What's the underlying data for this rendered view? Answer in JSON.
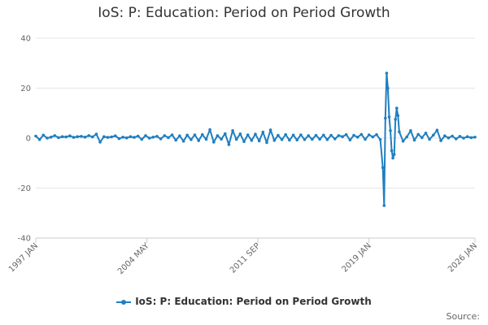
{
  "chart_data": {
    "type": "line",
    "title": "IoS: P: Education: Period on Period Growth",
    "xlabel": "",
    "ylabel": "",
    "ylim": [
      -40,
      40
    ],
    "yticks": [
      "40",
      "20",
      "0",
      "-20",
      "-40"
    ],
    "ytick_values": [
      40,
      20,
      0,
      -20,
      -40
    ],
    "xlim": [
      "1997-01",
      "2026-01"
    ],
    "xticks": [
      "1997 JAN",
      "2004 MAY",
      "2011 SEP",
      "2019 JAN",
      "2026 JAN"
    ],
    "xtick_values": [
      "1997-01",
      "2004-05",
      "2011-09",
      "2019-01",
      "2026-01"
    ],
    "grid": true,
    "legend_position": "bottom",
    "series": [
      {
        "name": "IoS: P: Education: Period on Period Growth",
        "color": "#1f7fc0",
        "points": [
          [
            "1997-01",
            0.8
          ],
          [
            "1997-04",
            -0.6
          ],
          [
            "1997-07",
            1.2
          ],
          [
            "1997-10",
            0.0
          ],
          [
            "1998-01",
            0.4
          ],
          [
            "1998-04",
            1.0
          ],
          [
            "1998-07",
            0.2
          ],
          [
            "1998-10",
            0.6
          ],
          [
            "1999-01",
            0.5
          ],
          [
            "1999-04",
            0.9
          ],
          [
            "1999-07",
            0.3
          ],
          [
            "1999-10",
            0.6
          ],
          [
            "2000-01",
            0.7
          ],
          [
            "2000-04",
            0.4
          ],
          [
            "2000-07",
            1.0
          ],
          [
            "2000-10",
            0.5
          ],
          [
            "2001-01",
            1.6
          ],
          [
            "2001-04",
            -1.6
          ],
          [
            "2001-07",
            0.6
          ],
          [
            "2001-10",
            0.3
          ],
          [
            "2002-01",
            0.5
          ],
          [
            "2002-04",
            0.9
          ],
          [
            "2002-07",
            -0.2
          ],
          [
            "2002-10",
            0.4
          ],
          [
            "2003-01",
            0.1
          ],
          [
            "2003-04",
            0.6
          ],
          [
            "2003-07",
            0.3
          ],
          [
            "2003-10",
            0.8
          ],
          [
            "2004-01",
            -0.5
          ],
          [
            "2004-04",
            1.0
          ],
          [
            "2004-07",
            0.0
          ],
          [
            "2004-10",
            0.4
          ],
          [
            "2005-01",
            0.7
          ],
          [
            "2005-04",
            -0.3
          ],
          [
            "2005-07",
            1.0
          ],
          [
            "2005-10",
            0.2
          ],
          [
            "2006-01",
            1.3
          ],
          [
            "2006-04",
            -0.8
          ],
          [
            "2006-07",
            0.9
          ],
          [
            "2006-10",
            -1.2
          ],
          [
            "2007-01",
            1.2
          ],
          [
            "2007-04",
            -0.6
          ],
          [
            "2007-07",
            1.3
          ],
          [
            "2007-10",
            -1.0
          ],
          [
            "2008-01",
            1.4
          ],
          [
            "2008-04",
            -0.5
          ],
          [
            "2008-07",
            3.4
          ],
          [
            "2008-10",
            -1.6
          ],
          [
            "2009-01",
            1.0
          ],
          [
            "2009-04",
            -0.4
          ],
          [
            "2009-07",
            1.8
          ],
          [
            "2009-10",
            -2.6
          ],
          [
            "2010-01",
            3.0
          ],
          [
            "2010-04",
            -0.5
          ],
          [
            "2010-07",
            1.7
          ],
          [
            "2010-10",
            -1.4
          ],
          [
            "2011-01",
            1.3
          ],
          [
            "2011-04",
            -0.9
          ],
          [
            "2011-07",
            1.6
          ],
          [
            "2011-10",
            -1.1
          ],
          [
            "2012-01",
            2.4
          ],
          [
            "2012-04",
            -1.8
          ],
          [
            "2012-07",
            3.3
          ],
          [
            "2012-10",
            -0.9
          ],
          [
            "2013-01",
            1.1
          ],
          [
            "2013-04",
            -0.6
          ],
          [
            "2013-07",
            1.4
          ],
          [
            "2013-10",
            -0.8
          ],
          [
            "2014-01",
            1.2
          ],
          [
            "2014-04",
            -0.7
          ],
          [
            "2014-07",
            1.3
          ],
          [
            "2014-10",
            -0.6
          ],
          [
            "2015-01",
            1.0
          ],
          [
            "2015-04",
            -0.5
          ],
          [
            "2015-07",
            1.1
          ],
          [
            "2015-10",
            -0.4
          ],
          [
            "2016-01",
            1.2
          ],
          [
            "2016-04",
            -0.6
          ],
          [
            "2016-07",
            1.1
          ],
          [
            "2016-10",
            -0.3
          ],
          [
            "2017-01",
            1.0
          ],
          [
            "2017-04",
            0.6
          ],
          [
            "2017-07",
            1.4
          ],
          [
            "2017-10",
            -0.7
          ],
          [
            "2018-01",
            1.1
          ],
          [
            "2018-04",
            0.4
          ],
          [
            "2018-07",
            1.5
          ],
          [
            "2018-10",
            -0.5
          ],
          [
            "2019-01",
            1.3
          ],
          [
            "2019-04",
            0.5
          ],
          [
            "2019-07",
            1.4
          ],
          [
            "2019-10",
            -0.6
          ],
          [
            "2019-12",
            -11.8
          ],
          [
            "2020-01",
            -27.0
          ],
          [
            "2020-02",
            8.0
          ],
          [
            "2020-03",
            26.0
          ],
          [
            "2020-04",
            20.0
          ],
          [
            "2020-05",
            8.5
          ],
          [
            "2020-06",
            3.0
          ],
          [
            "2020-07",
            -5.0
          ],
          [
            "2020-08",
            -8.0
          ],
          [
            "2020-09",
            -6.5
          ],
          [
            "2020-10",
            7.5
          ],
          [
            "2020-11",
            12.0
          ],
          [
            "2020-12",
            9.0
          ],
          [
            "2021-01",
            2.5
          ],
          [
            "2021-04",
            -1.2
          ],
          [
            "2021-07",
            0.5
          ],
          [
            "2021-10",
            3.0
          ],
          [
            "2022-01",
            -0.8
          ],
          [
            "2022-04",
            1.5
          ],
          [
            "2022-07",
            0.2
          ],
          [
            "2022-10",
            2.0
          ],
          [
            "2023-01",
            -0.5
          ],
          [
            "2023-04",
            1.2
          ],
          [
            "2023-07",
            3.2
          ],
          [
            "2023-10",
            -1.0
          ],
          [
            "2024-01",
            0.9
          ],
          [
            "2024-04",
            0.1
          ],
          [
            "2024-07",
            0.8
          ],
          [
            "2024-10",
            -0.3
          ],
          [
            "2025-01",
            0.7
          ],
          [
            "2025-04",
            0.0
          ],
          [
            "2025-07",
            0.6
          ],
          [
            "2025-10",
            0.2
          ],
          [
            "2026-01",
            0.4
          ]
        ]
      }
    ]
  },
  "legend": {
    "label": "IoS: P: Education: Period on Period Growth"
  },
  "footer": {
    "source_label": "Source:"
  }
}
